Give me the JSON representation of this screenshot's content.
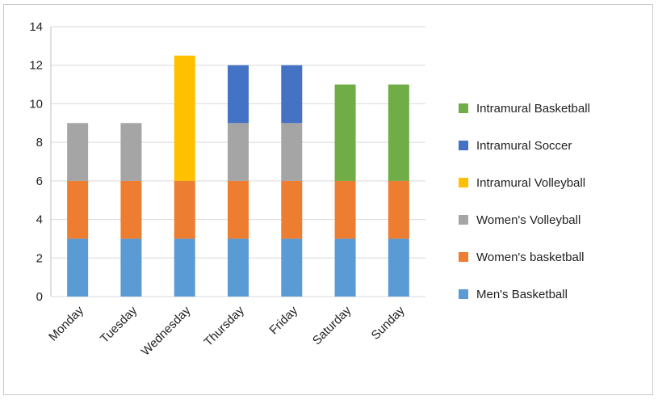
{
  "chart_data": {
    "type": "bar",
    "stacked": true,
    "categories": [
      "Monday",
      "Tuesday",
      "Wednesday",
      "Thursday",
      "Friday",
      "Saturday",
      "Sunday"
    ],
    "series": [
      {
        "name": "Men's Basketball",
        "color": "#5a9bd5",
        "values": [
          3,
          3,
          3,
          3,
          3,
          3,
          3
        ]
      },
      {
        "name": "Women's basketball",
        "color": "#ed7d31",
        "values": [
          3,
          3,
          3,
          3,
          3,
          3,
          3
        ]
      },
      {
        "name": "Women's Volleyball",
        "color": "#a5a5a5",
        "values": [
          3,
          3,
          0,
          3,
          3,
          0,
          0
        ]
      },
      {
        "name": "Intramural Volleyball",
        "color": "#ffc000",
        "values": [
          0,
          0,
          6.5,
          0,
          0,
          0,
          0
        ]
      },
      {
        "name": "Intramural Soccer",
        "color": "#4472c4",
        "values": [
          0,
          0,
          0,
          3,
          3,
          0,
          0
        ]
      },
      {
        "name": "Intramural Basketball",
        "color": "#70ad47",
        "values": [
          0,
          0,
          0,
          0,
          0,
          5,
          5
        ]
      }
    ],
    "title": "",
    "xlabel": "",
    "ylabel": "",
    "ylim": [
      0,
      14
    ],
    "yticks": [
      0,
      2,
      4,
      6,
      8,
      10,
      12,
      14
    ],
    "grid": true,
    "legend_position": "right"
  }
}
